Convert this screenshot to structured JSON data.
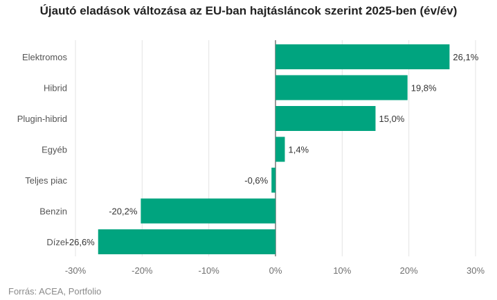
{
  "chart_data": {
    "type": "bar",
    "orientation": "horizontal",
    "title": "Újautó eladások változása az EU-ban hajtásláncok szerint 2025-ben (év/év)",
    "categories": [
      "Elektromos",
      "Hibrid",
      "Plugin-hibrid",
      "Egyéb",
      "Teljes piac",
      "Benzin",
      "Dízel"
    ],
    "values": [
      26.1,
      19.8,
      15.0,
      1.4,
      -0.6,
      -20.2,
      -26.6
    ],
    "value_labels": [
      "26,1%",
      "19,8%",
      "15,0%",
      "1,4%",
      "-0,6%",
      "-20,2%",
      "-26,6%"
    ],
    "xlim": [
      -30,
      30
    ],
    "xticks": [
      -30,
      -20,
      -10,
      0,
      10,
      20,
      30
    ],
    "xtick_labels": [
      "-30%",
      "-20%",
      "-10%",
      "0%",
      "10%",
      "20%",
      "30%"
    ],
    "xlabel": "",
    "ylabel": "",
    "grid": true,
    "bar_color": "#00a47f"
  },
  "source": "Forrás: ACEA, Portfolio"
}
